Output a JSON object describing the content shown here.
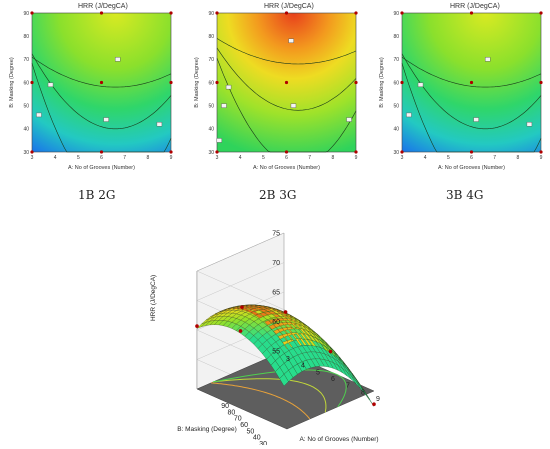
{
  "chart_data": [
    {
      "type": "contour",
      "title": "HRR (J/DegCA)",
      "caption": "1B 2G",
      "xlabel": "A: No of Grooves (Number)",
      "ylabel": "B: Masking (Degree)",
      "xticks": [
        3,
        4,
        5,
        6,
        7,
        8,
        9
      ],
      "yticks": [
        30,
        40,
        50,
        60,
        70,
        80,
        90
      ],
      "xlim": [
        3,
        9
      ],
      "ylim": [
        30,
        90
      ],
      "contour_labels": [
        "60",
        "65",
        "70",
        "70",
        "65"
      ],
      "palette": "cool"
    },
    {
      "type": "contour",
      "title": "HRR (J/DegCA)",
      "caption": "2B 3G",
      "xlabel": "A: No of Grooves (Number)",
      "ylabel": "B: Masking (Degree)",
      "xticks": [
        3,
        4,
        5,
        6,
        7,
        8,
        9
      ],
      "yticks": [
        30,
        40,
        50,
        60,
        70,
        80,
        90
      ],
      "xlim": [
        3,
        9
      ],
      "ylim": [
        30,
        90
      ],
      "contour_labels": [
        "70",
        "75",
        "80",
        "75",
        "70",
        "65"
      ],
      "palette": "hot"
    },
    {
      "type": "contour",
      "title": "HRR (J/DegCA)",
      "caption": "3B 4G",
      "xlabel": "A: No of Grooves (Number)",
      "ylabel": "B: Masking (Degree)",
      "xticks": [
        3,
        4,
        5,
        6,
        7,
        8,
        9
      ],
      "yticks": [
        30,
        40,
        50,
        60,
        70,
        80,
        90
      ],
      "xlim": [
        3,
        9
      ],
      "ylim": [
        30,
        90
      ],
      "contour_labels": [
        "60",
        "65",
        "70",
        "70",
        "65"
      ],
      "palette": "cool"
    },
    {
      "type": "surface",
      "zlabel": "HRR (J/DegCA)",
      "xlabel": "A: No of Grooves (Number)",
      "ylabel": "B: Masking (Degree)",
      "zticks": [
        55,
        60,
        65,
        70,
        75
      ],
      "xticks": [
        3,
        4,
        5,
        6,
        7,
        8,
        9
      ],
      "yticks": [
        30,
        40,
        50,
        60,
        70,
        80,
        90
      ],
      "zlim": [
        55,
        75
      ]
    }
  ]
}
